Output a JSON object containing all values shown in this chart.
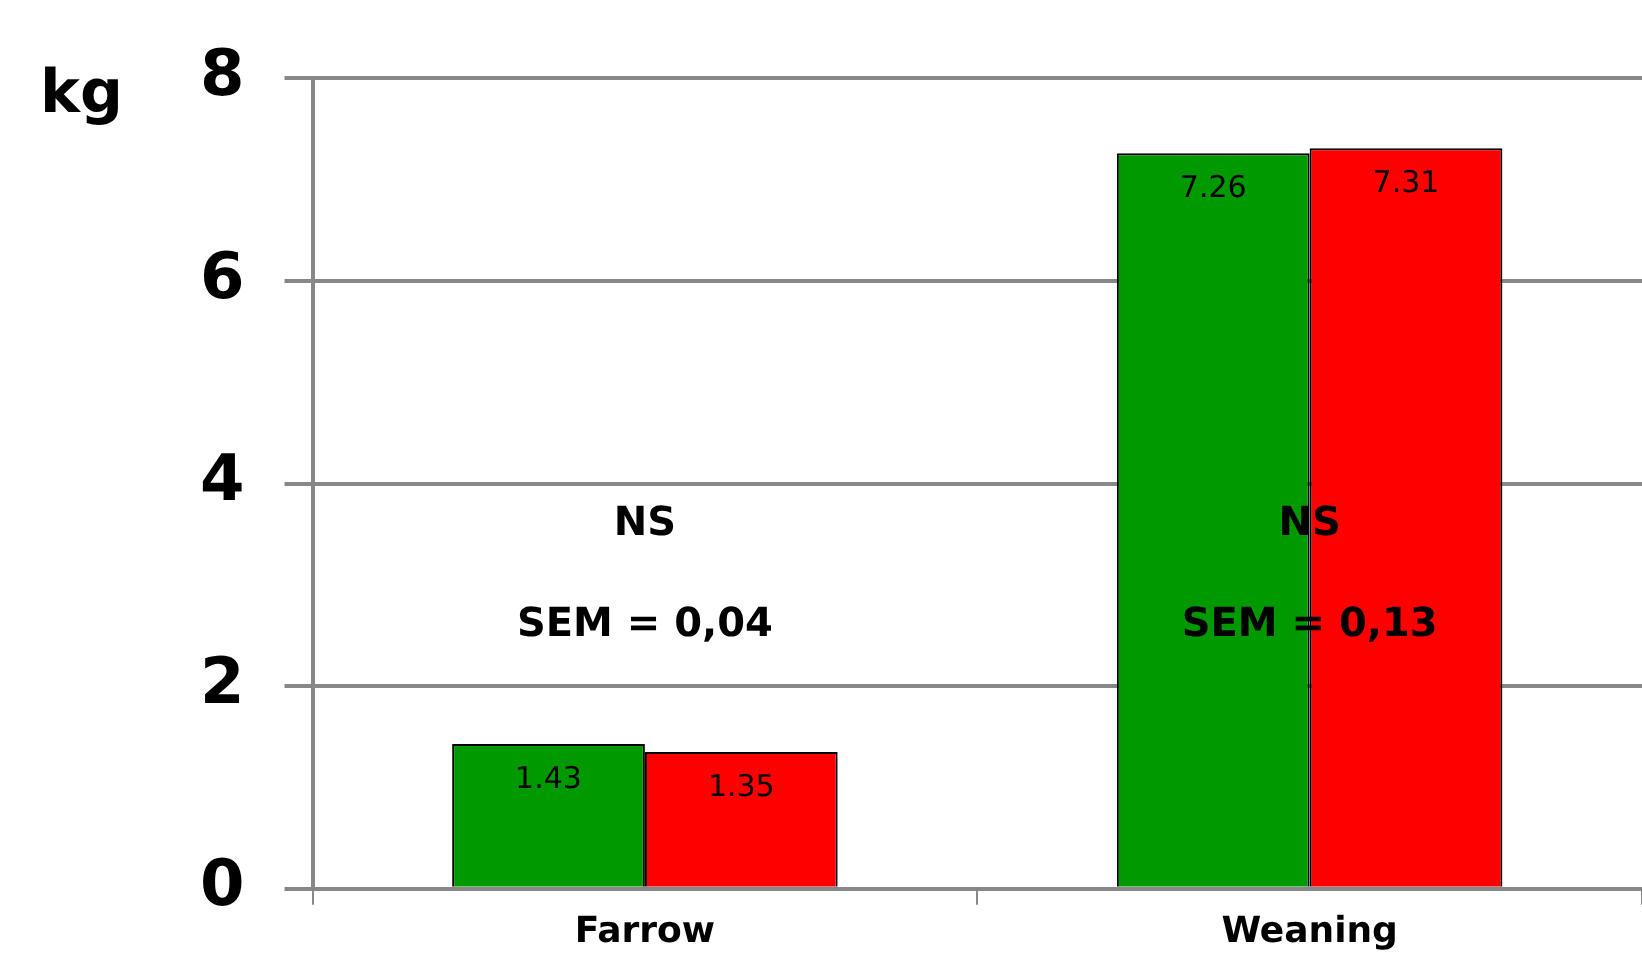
{
  "chart_data": {
    "type": "bar",
    "ylabel": "kg",
    "categories": [
      "Farrow",
      "Weaning"
    ],
    "series": [
      {
        "color": "#009900",
        "values": [
          1.43,
          7.26
        ]
      },
      {
        "color": "#ff0000",
        "values": [
          1.35,
          7.31
        ]
      }
    ],
    "ylim": [
      0,
      8
    ],
    "yticks": [
      0,
      2,
      4,
      6,
      8
    ],
    "grid": "y",
    "legend": false,
    "data_labels": true,
    "annotations": [
      "NS",
      "SEM = 0,04",
      "NS",
      "SEM = 0,13"
    ]
  }
}
